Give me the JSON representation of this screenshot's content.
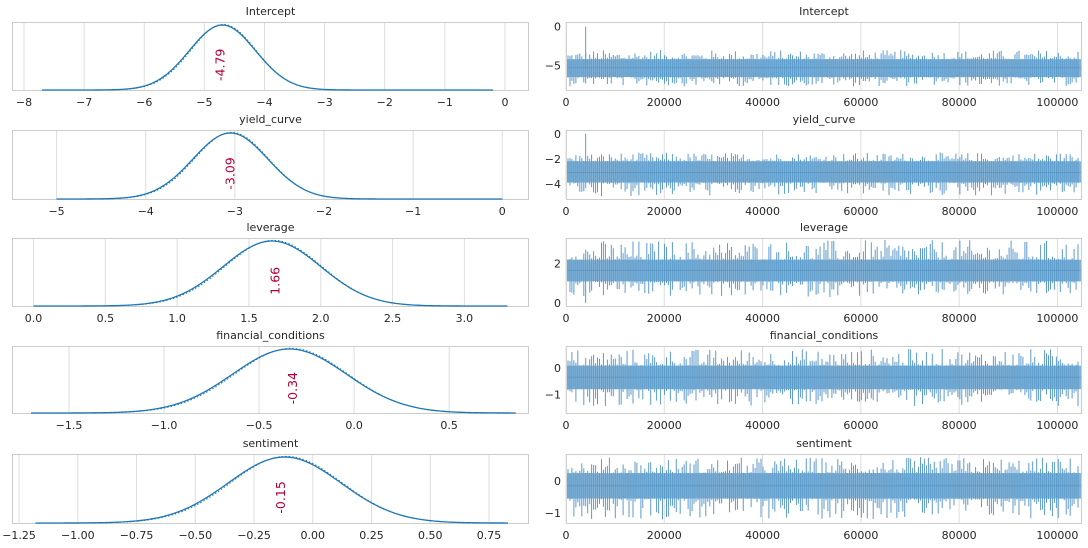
{
  "figure": {
    "title": "",
    "colors": {
      "line": "#1f77b4",
      "trace": "#6fa6d0",
      "mean_text": "#b2003b",
      "grid": "#dddddd",
      "frame": "#cccccc"
    }
  },
  "chart_data": [
    {
      "type": "line",
      "subtype": "kde",
      "title": "Intercept",
      "xlim": [
        -8.2,
        0.4
      ],
      "xticks": [
        -8,
        -7,
        -6,
        -5,
        -4,
        -3,
        -2,
        -1,
        0
      ],
      "xtick_labels": [
        "−8",
        "−7",
        "−6",
        "−5",
        "−4",
        "−3",
        "−2",
        "−1",
        "0"
      ],
      "mean": -4.79,
      "mean_label": "-4.79",
      "density": {
        "mu": -4.7,
        "sigma": 0.55,
        "min": -7.7,
        "max": -0.2
      }
    },
    {
      "type": "line",
      "subtype": "trace",
      "title": "Intercept",
      "xlim": [
        0,
        105000
      ],
      "ylim": [
        -8.3,
        0.6
      ],
      "xticks": [
        0,
        20000,
        40000,
        60000,
        80000,
        100000
      ],
      "xtick_labels": [
        "0",
        "20000",
        "40000",
        "60000",
        "80000",
        "100000"
      ],
      "yticks": [
        0,
        -5
      ],
      "ytick_labels": [
        "0",
        "−5"
      ],
      "band": {
        "center": -5.3,
        "low": -6.5,
        "high": -4.2,
        "min": -7.7,
        "max": -3.0
      },
      "spike": {
        "x": 4000,
        "y": 0.0
      }
    },
    {
      "type": "line",
      "subtype": "kde",
      "title": "yield_curve",
      "xlim": [
        -5.5,
        0.3
      ],
      "xticks": [
        -5,
        -4,
        -3,
        -2,
        -1,
        0
      ],
      "xtick_labels": [
        "−5",
        "−4",
        "−3",
        "−2",
        "−1",
        "0"
      ],
      "mean": -3.09,
      "mean_label": "-3.09",
      "density": {
        "mu": -3.05,
        "sigma": 0.42,
        "min": -5.0,
        "max": 0.0
      }
    },
    {
      "type": "line",
      "subtype": "trace",
      "title": "yield_curve",
      "xlim": [
        0,
        105000
      ],
      "ylim": [
        -5.3,
        0.3
      ],
      "xticks": [
        0,
        20000,
        40000,
        60000,
        80000,
        100000
      ],
      "xtick_labels": [
        "0",
        "20000",
        "40000",
        "60000",
        "80000",
        "100000"
      ],
      "yticks": [
        0,
        -2,
        -4
      ],
      "ytick_labels": [
        "0",
        "−2",
        "−4"
      ],
      "band": {
        "center": -3.1,
        "low": -3.9,
        "high": -2.2,
        "min": -5.0,
        "max": -1.5
      },
      "spike": {
        "x": 4000,
        "y": 0.0
      }
    },
    {
      "type": "line",
      "subtype": "kde",
      "title": "leverage",
      "xlim": [
        -0.15,
        3.45
      ],
      "xticks": [
        0.0,
        0.5,
        1.0,
        1.5,
        2.0,
        2.5,
        3.0
      ],
      "xtick_labels": [
        "0.0",
        "0.5",
        "1.0",
        "1.5",
        "2.0",
        "2.5",
        "3.0"
      ],
      "mean": 1.66,
      "mean_label": "1.66",
      "density": {
        "mu": 1.66,
        "sigma": 0.34,
        "min": 0.0,
        "max": 3.3
      }
    },
    {
      "type": "line",
      "subtype": "trace",
      "title": "leverage",
      "xlim": [
        0,
        105000
      ],
      "ylim": [
        -0.2,
        3.3
      ],
      "xticks": [
        0,
        20000,
        40000,
        60000,
        80000,
        100000
      ],
      "xtick_labels": [
        "0",
        "20000",
        "40000",
        "60000",
        "80000",
        "100000"
      ],
      "yticks": [
        2,
        0
      ],
      "ytick_labels": [
        "2",
        "0"
      ],
      "band": {
        "center": 1.66,
        "low": 1.1,
        "high": 2.2,
        "min": 0.3,
        "max": 3.2
      },
      "spike": {
        "x": 4000,
        "y": 0.0
      }
    },
    {
      "type": "line",
      "subtype": "kde",
      "title": "financial_conditions",
      "xlim": [
        -1.8,
        0.92
      ],
      "xticks": [
        -1.5,
        -1.0,
        -0.5,
        0.0,
        0.5
      ],
      "xtick_labels": [
        "−1.5",
        "−1.0",
        "−0.5",
        "0.0",
        "0.5"
      ],
      "mean": -0.34,
      "mean_label": "-0.34",
      "density": {
        "mu": -0.34,
        "sigma": 0.3,
        "min": -1.7,
        "max": 0.85
      }
    },
    {
      "type": "line",
      "subtype": "trace",
      "title": "financial_conditions",
      "xlim": [
        0,
        105000
      ],
      "ylim": [
        -1.75,
        0.85
      ],
      "xticks": [
        0,
        20000,
        40000,
        60000,
        80000,
        100000
      ],
      "xtick_labels": [
        "0",
        "20000",
        "40000",
        "60000",
        "80000",
        "100000"
      ],
      "yticks": [
        0,
        -1
      ],
      "ytick_labels": [
        "0",
        "−1"
      ],
      "band": {
        "center": -0.34,
        "low": -0.8,
        "high": 0.1,
        "min": -1.45,
        "max": 0.75
      }
    },
    {
      "type": "line",
      "subtype": "kde",
      "title": "sentiment",
      "xlim": [
        -1.28,
        0.92
      ],
      "xticks": [
        -1.25,
        -1.0,
        -0.75,
        -0.5,
        -0.25,
        0.0,
        0.25,
        0.5,
        0.75
      ],
      "xtick_labels": [
        "−1.25",
        "−1.00",
        "−0.75",
        "−0.50",
        "−0.25",
        "0.00",
        "0.25",
        "0.50",
        "0.75"
      ],
      "mean": -0.15,
      "mean_label": "-0.15",
      "density": {
        "mu": -0.12,
        "sigma": 0.24,
        "min": -1.18,
        "max": 0.83
      }
    },
    {
      "type": "line",
      "subtype": "trace",
      "title": "sentiment",
      "xlim": [
        0,
        105000
      ],
      "ylim": [
        -1.35,
        0.85
      ],
      "xticks": [
        0,
        20000,
        40000,
        60000,
        80000,
        100000
      ],
      "xtick_labels": [
        "0",
        "20000",
        "40000",
        "60000",
        "80000",
        "100000"
      ],
      "yticks": [
        0,
        -1
      ],
      "ytick_labels": [
        "0",
        "−1"
      ],
      "band": {
        "center": -0.15,
        "low": -0.55,
        "high": 0.25,
        "min": -1.2,
        "max": 0.75
      }
    }
  ]
}
